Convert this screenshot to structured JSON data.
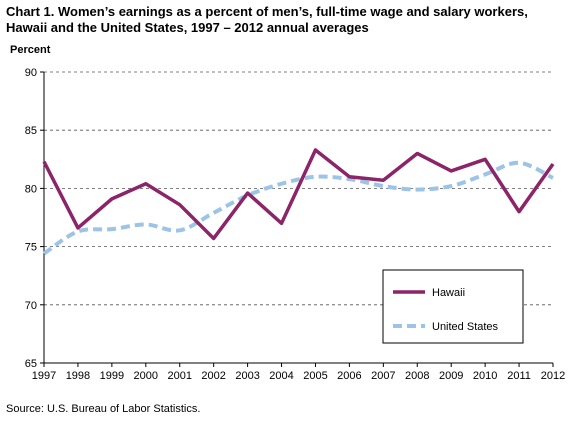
{
  "chart_data": {
    "type": "line",
    "title": "Chart 1. Women’s earnings as a percent of men’s, full-time wage and salary workers, Hawaii and the United States, 1997 – 2012 annual averages",
    "ylabel": "Percent",
    "xlabel": "",
    "ylim": [
      65,
      90
    ],
    "yticks": [
      65,
      70,
      75,
      80,
      85,
      90
    ],
    "categories": [
      "1997",
      "1998",
      "1999",
      "2000",
      "2001",
      "2002",
      "2003",
      "2004",
      "2005",
      "2006",
      "2007",
      "2008",
      "2009",
      "2010",
      "2011",
      "2012"
    ],
    "grid": "horizontal dashed",
    "legend_position": "bottom-right",
    "series": [
      {
        "name": "Hawaii",
        "color": "#8B2469",
        "style": "solid",
        "values": [
          82.3,
          76.6,
          79.1,
          80.4,
          78.6,
          75.7,
          79.6,
          77.0,
          83.3,
          81.0,
          80.7,
          83.0,
          81.5,
          82.5,
          78.0,
          82.1
        ]
      },
      {
        "name": "United States",
        "color": "#9DC3E6",
        "style": "dashed",
        "values": [
          74.4,
          76.3,
          76.5,
          76.9,
          76.4,
          77.9,
          79.4,
          80.4,
          81.0,
          80.8,
          80.2,
          79.9,
          80.2,
          81.2,
          82.2,
          80.9
        ]
      }
    ]
  },
  "source": "Source:  U.S.  Bureau of Labor Statistics."
}
